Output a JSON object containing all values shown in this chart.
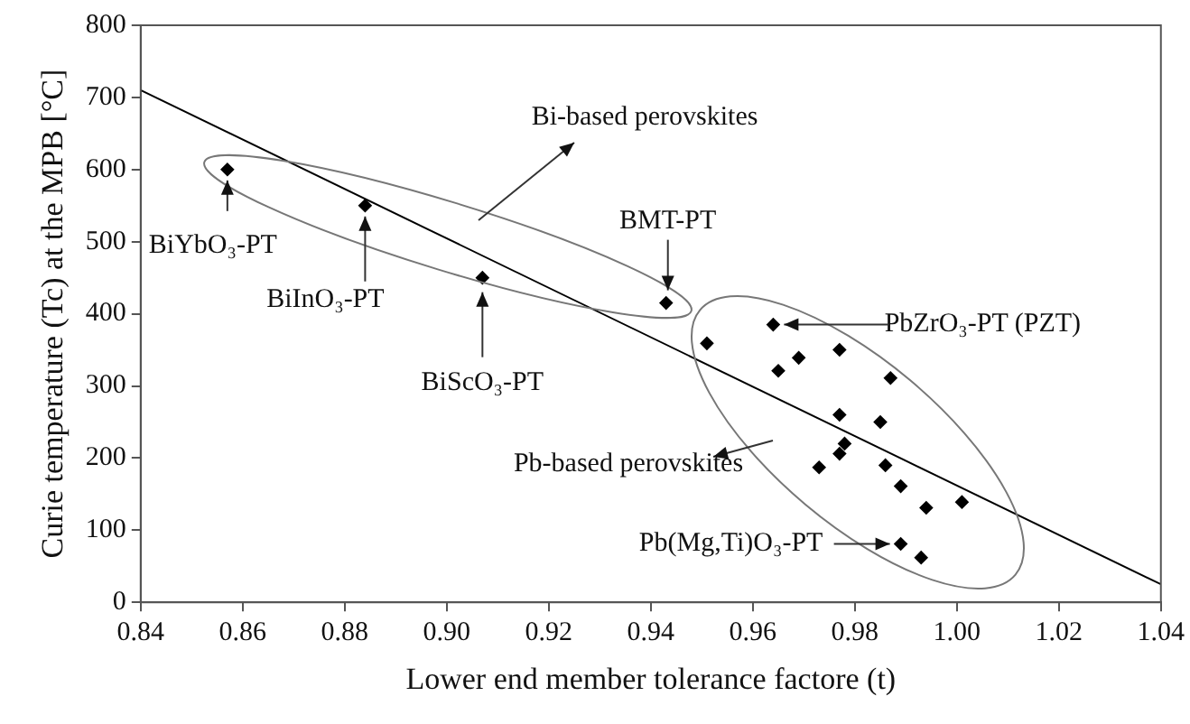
{
  "chart_data": {
    "type": "scatter",
    "xlabel": "Lower end member tolerance factore (t)",
    "ylabel": "Curie temperature (Tc) at the MPB [°C]",
    "xlim": [
      0.84,
      1.04
    ],
    "ylim": [
      0,
      800
    ],
    "xticks": [
      0.84,
      0.86,
      0.88,
      {
        "value": 0.9,
        "label": "0.90"
      },
      0.92,
      0.94,
      0.96,
      0.98,
      {
        "value": 1.0,
        "label": "1.00"
      },
      1.02,
      1.04
    ],
    "yticks": [
      0,
      100,
      200,
      300,
      400,
      500,
      600,
      700,
      800
    ],
    "grid": false,
    "legend": false,
    "series": [
      {
        "marker": "diamond",
        "color": "#000000",
        "x": [
          0.857,
          0.884,
          0.907,
          0.943,
          0.951,
          0.964,
          0.965,
          0.969,
          0.977,
          0.987,
          0.977,
          0.985,
          0.978,
          0.977,
          0.973,
          0.986,
          0.989,
          0.994,
          1.001,
          0.989,
          0.993
        ],
        "values": [
          600,
          550,
          450,
          415,
          359,
          385,
          321,
          339,
          350,
          311,
          260,
          250,
          220,
          206,
          187,
          190,
          161,
          131,
          139,
          81,
          62
        ]
      },
      {
        "type": "line",
        "color": "#000000",
        "x": [
          0.84,
          1.04
        ],
        "values": [
          710,
          25
        ]
      }
    ],
    "annotations": [
      {
        "text": "BiYbO₃-PT",
        "x": 0.857,
        "y": 600
      },
      {
        "text": "BiInO₃-PT",
        "x": 0.884,
        "y": 550
      },
      {
        "text": "BiScO₃-PT",
        "x": 0.907,
        "y": 450
      },
      {
        "text": "BMT-PT",
        "x": 0.943,
        "y": 415
      },
      {
        "text": "PbZrO₃-PT (PZT)",
        "x": 0.964,
        "y": 385
      },
      {
        "text": "Pb(Mg,Ti)O₃-PT",
        "x": 0.989,
        "y": 81
      },
      "Bi-based perovskites",
      "Pb-based perovskites"
    ]
  }
}
